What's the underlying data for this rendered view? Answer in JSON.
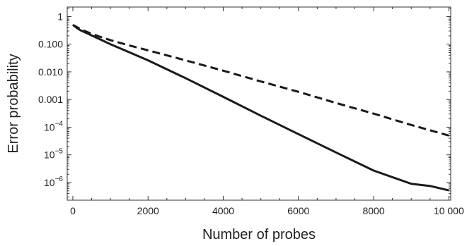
{
  "chart_data": {
    "type": "line",
    "xlabel": "Number of probes",
    "ylabel": "Error probability",
    "xlim": [
      -150,
      10050
    ],
    "ylim": [
      2.3e-07,
      2.2
    ],
    "yscale": "log",
    "grid": false,
    "legend": "none",
    "x_ticks": [
      0,
      2000,
      4000,
      6000,
      8000,
      10000
    ],
    "x_tick_labels": [
      "0",
      "2000",
      "4000",
      "6000",
      "8000",
      "10 000"
    ],
    "y_ticks": [
      {
        "value": 1,
        "label": "1"
      },
      {
        "value": 0.1,
        "label": "0.100"
      },
      {
        "value": 0.01,
        "label": "0.010"
      },
      {
        "value": 0.001,
        "label": "0.001"
      },
      {
        "value": 0.0001,
        "base": "10",
        "exp": "−4"
      },
      {
        "value": 1e-05,
        "base": "10",
        "exp": "−5"
      },
      {
        "value": 1e-06,
        "base": "10",
        "exp": "−6"
      }
    ],
    "series": [
      {
        "style": "solid",
        "color": "#1a1a1a",
        "x": [
          0,
          100,
          200,
          400,
          700,
          1000,
          1500,
          2000,
          3000,
          4000,
          5000,
          6000,
          7000,
          8000,
          9000,
          9500,
          10000
        ],
        "y": [
          0.5,
          0.39,
          0.32,
          0.24,
          0.155,
          0.1,
          0.051,
          0.026,
          0.0059,
          0.00125,
          0.00026,
          5.6e-05,
          1.22e-05,
          2.7e-06,
          9e-07,
          7.5e-07,
          5.2e-07
        ]
      },
      {
        "style": "dashed",
        "color": "#1a1a1a",
        "x": [
          0,
          100,
          200,
          400,
          700,
          1000,
          1500,
          2000,
          3000,
          4000,
          5000,
          6000,
          7000,
          8000,
          9000,
          10000
        ],
        "y": [
          0.5,
          0.42,
          0.35,
          0.27,
          0.19,
          0.14,
          0.09,
          0.06,
          0.026,
          0.011,
          0.0045,
          0.0019,
          0.00075,
          0.00031,
          0.00012,
          5e-05
        ]
      }
    ]
  }
}
